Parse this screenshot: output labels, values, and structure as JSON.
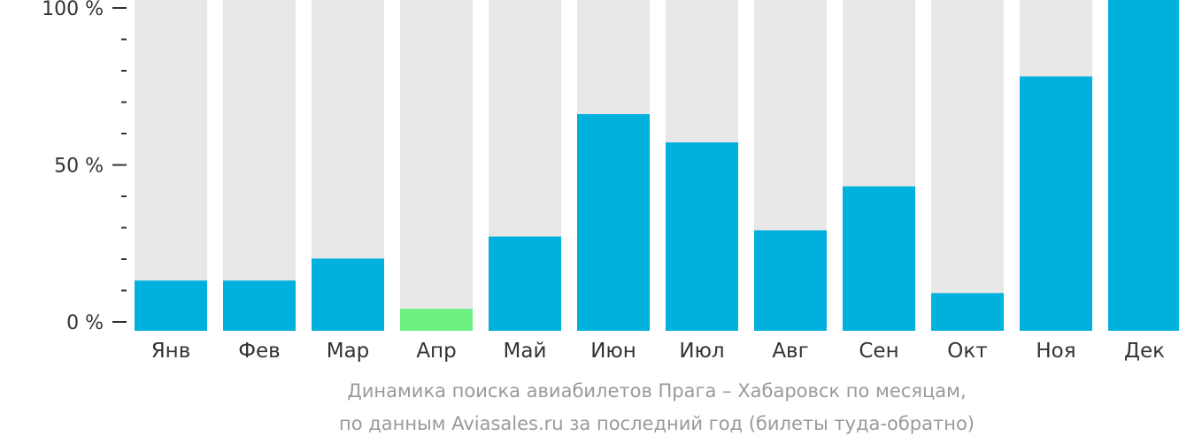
{
  "chart_data": {
    "type": "bar",
    "categories": [
      "Янв",
      "Фев",
      "Мар",
      "Апр",
      "Май",
      "Июн",
      "Июл",
      "Авг",
      "Сен",
      "Окт",
      "Ноя",
      "Дек"
    ],
    "values": [
      16,
      16,
      23,
      7,
      30,
      69,
      60,
      32,
      46,
      12,
      81,
      106
    ],
    "ylim": [
      0,
      106
    ],
    "y_ticks": [
      {
        "value": 0,
        "label": "0 %"
      },
      {
        "value": 50,
        "label": "50 %"
      },
      {
        "value": 100,
        "label": "100 %"
      }
    ],
    "y_minor_ticks": [
      10,
      20,
      30,
      40,
      60,
      70,
      80,
      90
    ],
    "highlight_index": 3,
    "colors": {
      "bar": "#00b0dd",
      "highlight": "#6cf081",
      "background_bar": "#e8e8e8",
      "axis": "#333333",
      "label": "#333333"
    }
  },
  "caption": {
    "line1": "Динамика поиска авиабилетов Прага – Хабаровск по месяцам,",
    "line2": "по данным Aviasales.ru за последний год (билеты туда-обратно)"
  }
}
